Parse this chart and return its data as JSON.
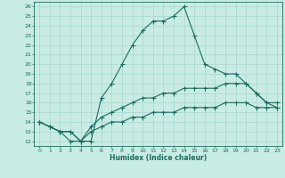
{
  "xlabel": "Humidex (Indice chaleur)",
  "ylabel": "",
  "bg_color": "#c8ece4",
  "grid_color": "#a8d4cc",
  "line_color": "#1a6b60",
  "xlim": [
    -0.5,
    23.5
  ],
  "ylim": [
    11.5,
    26.5
  ],
  "yticks": [
    12,
    13,
    14,
    15,
    16,
    17,
    18,
    19,
    20,
    21,
    22,
    23,
    24,
    25,
    26
  ],
  "xticks": [
    0,
    1,
    2,
    3,
    4,
    5,
    6,
    7,
    8,
    9,
    10,
    11,
    12,
    13,
    14,
    15,
    16,
    17,
    18,
    19,
    20,
    21,
    22,
    23
  ],
  "line1_x": [
    0,
    1,
    2,
    3,
    4,
    5,
    6,
    7,
    8,
    9,
    10,
    11,
    12,
    13,
    14,
    15,
    16,
    17,
    18,
    19,
    20,
    21,
    22,
    23
  ],
  "line1_y": [
    14,
    13.5,
    13,
    12,
    12,
    12,
    16.5,
    18,
    20,
    22,
    23.5,
    24.5,
    24.5,
    25,
    26,
    23,
    20,
    19.5,
    19,
    19,
    18,
    17,
    16,
    15.5
  ],
  "line2_x": [
    0,
    1,
    2,
    3,
    4,
    5,
    6,
    7,
    8,
    9,
    10,
    11,
    12,
    13,
    14,
    15,
    16,
    17,
    18,
    19,
    20,
    21,
    22,
    23
  ],
  "line2_y": [
    14,
    13.5,
    13,
    13,
    12,
    13.5,
    14.5,
    15,
    15.5,
    16,
    16.5,
    16.5,
    17,
    17,
    17.5,
    17.5,
    17.5,
    17.5,
    18,
    18,
    18,
    17,
    16,
    16
  ],
  "line3_x": [
    0,
    1,
    2,
    3,
    4,
    5,
    6,
    7,
    8,
    9,
    10,
    11,
    12,
    13,
    14,
    15,
    16,
    17,
    18,
    19,
    20,
    21,
    22,
    23
  ],
  "line3_y": [
    14,
    13.5,
    13,
    13,
    12,
    13,
    13.5,
    14,
    14,
    14.5,
    14.5,
    15,
    15,
    15,
    15.5,
    15.5,
    15.5,
    15.5,
    16,
    16,
    16,
    15.5,
    15.5,
    15.5
  ]
}
